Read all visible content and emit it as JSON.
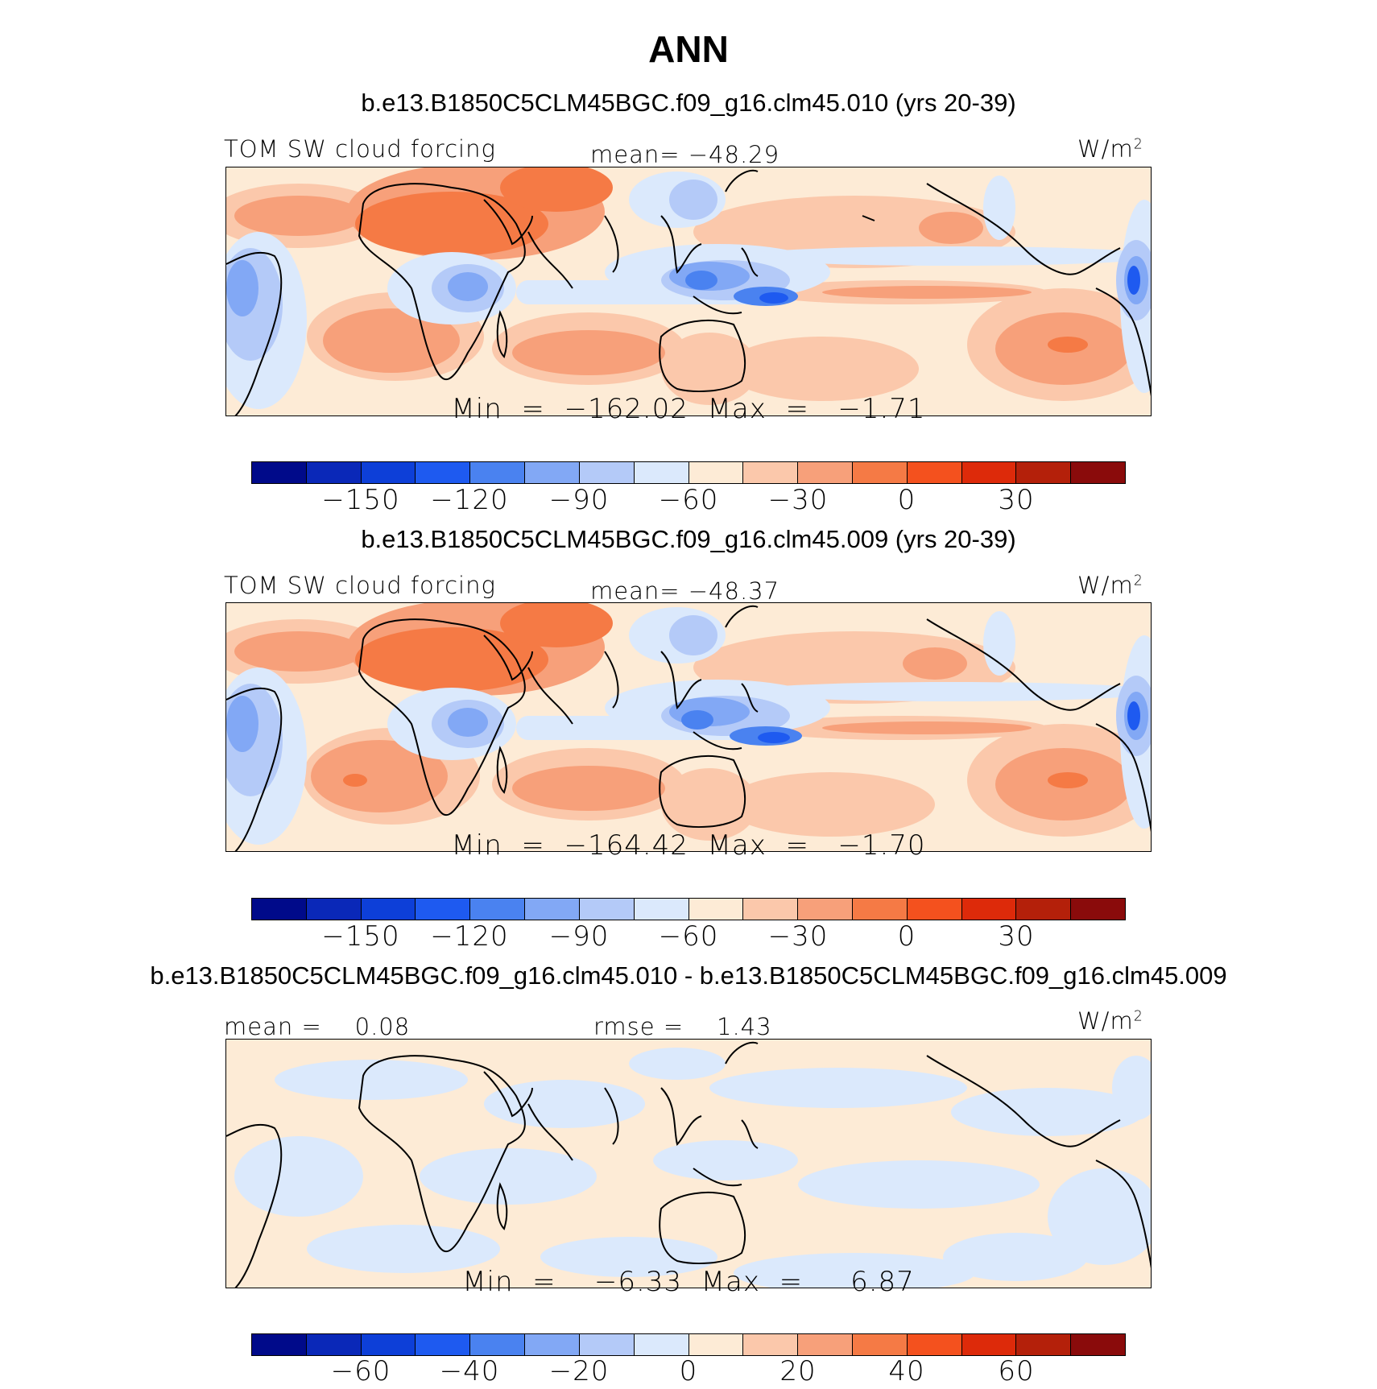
{
  "title": "ANN",
  "units_base": "W/m",
  "units_exp": "2",
  "colors": [
    "#000a8a",
    "#0a28b8",
    "#0d3fd8",
    "#1e5af0",
    "#4a82f0",
    "#82a8f5",
    "#b4caf8",
    "#dbe9fc",
    "#fdebd6",
    "#fbc8ab",
    "#f7a07a",
    "#f57a45",
    "#f4511e",
    "#dd2a0a",
    "#b4200a",
    "#8a0b0b"
  ],
  "panels": [
    {
      "title": "b.e13.B1850C5CLM45BGC.f09_g16.clm45.010 (yrs 20-39)",
      "left_label": "TOM SW cloud forcing",
      "center_label": "mean= −48.29",
      "min_max": "Min  =  −162.02  Max  =   −1.71",
      "ticks": [
        "−150",
        "−120",
        "−90",
        "−60",
        "−30",
        "0",
        "30"
      ]
    },
    {
      "title": "b.e13.B1850C5CLM45BGC.f09_g16.clm45.009 (yrs 20-39)",
      "left_label": "TOM SW cloud forcing",
      "center_label": "mean= −48.37",
      "min_max": "Min  =  −164.42  Max  =   −1.70",
      "ticks": [
        "−150",
        "−120",
        "−90",
        "−60",
        "−30",
        "0",
        "30"
      ]
    },
    {
      "title": "b.e13.B1850C5CLM45BGC.f09_g16.clm45.010 - b.e13.B1850C5CLM45BGC.f09_g16.clm45.009",
      "left_label": "mean =    0.08",
      "center_label": "rmse =    1.43",
      "min_max": "Min  =    −6.33  Max  =     6.87",
      "ticks": [
        "−60",
        "−40",
        "−20",
        "0",
        "20",
        "40",
        "60"
      ]
    }
  ]
}
